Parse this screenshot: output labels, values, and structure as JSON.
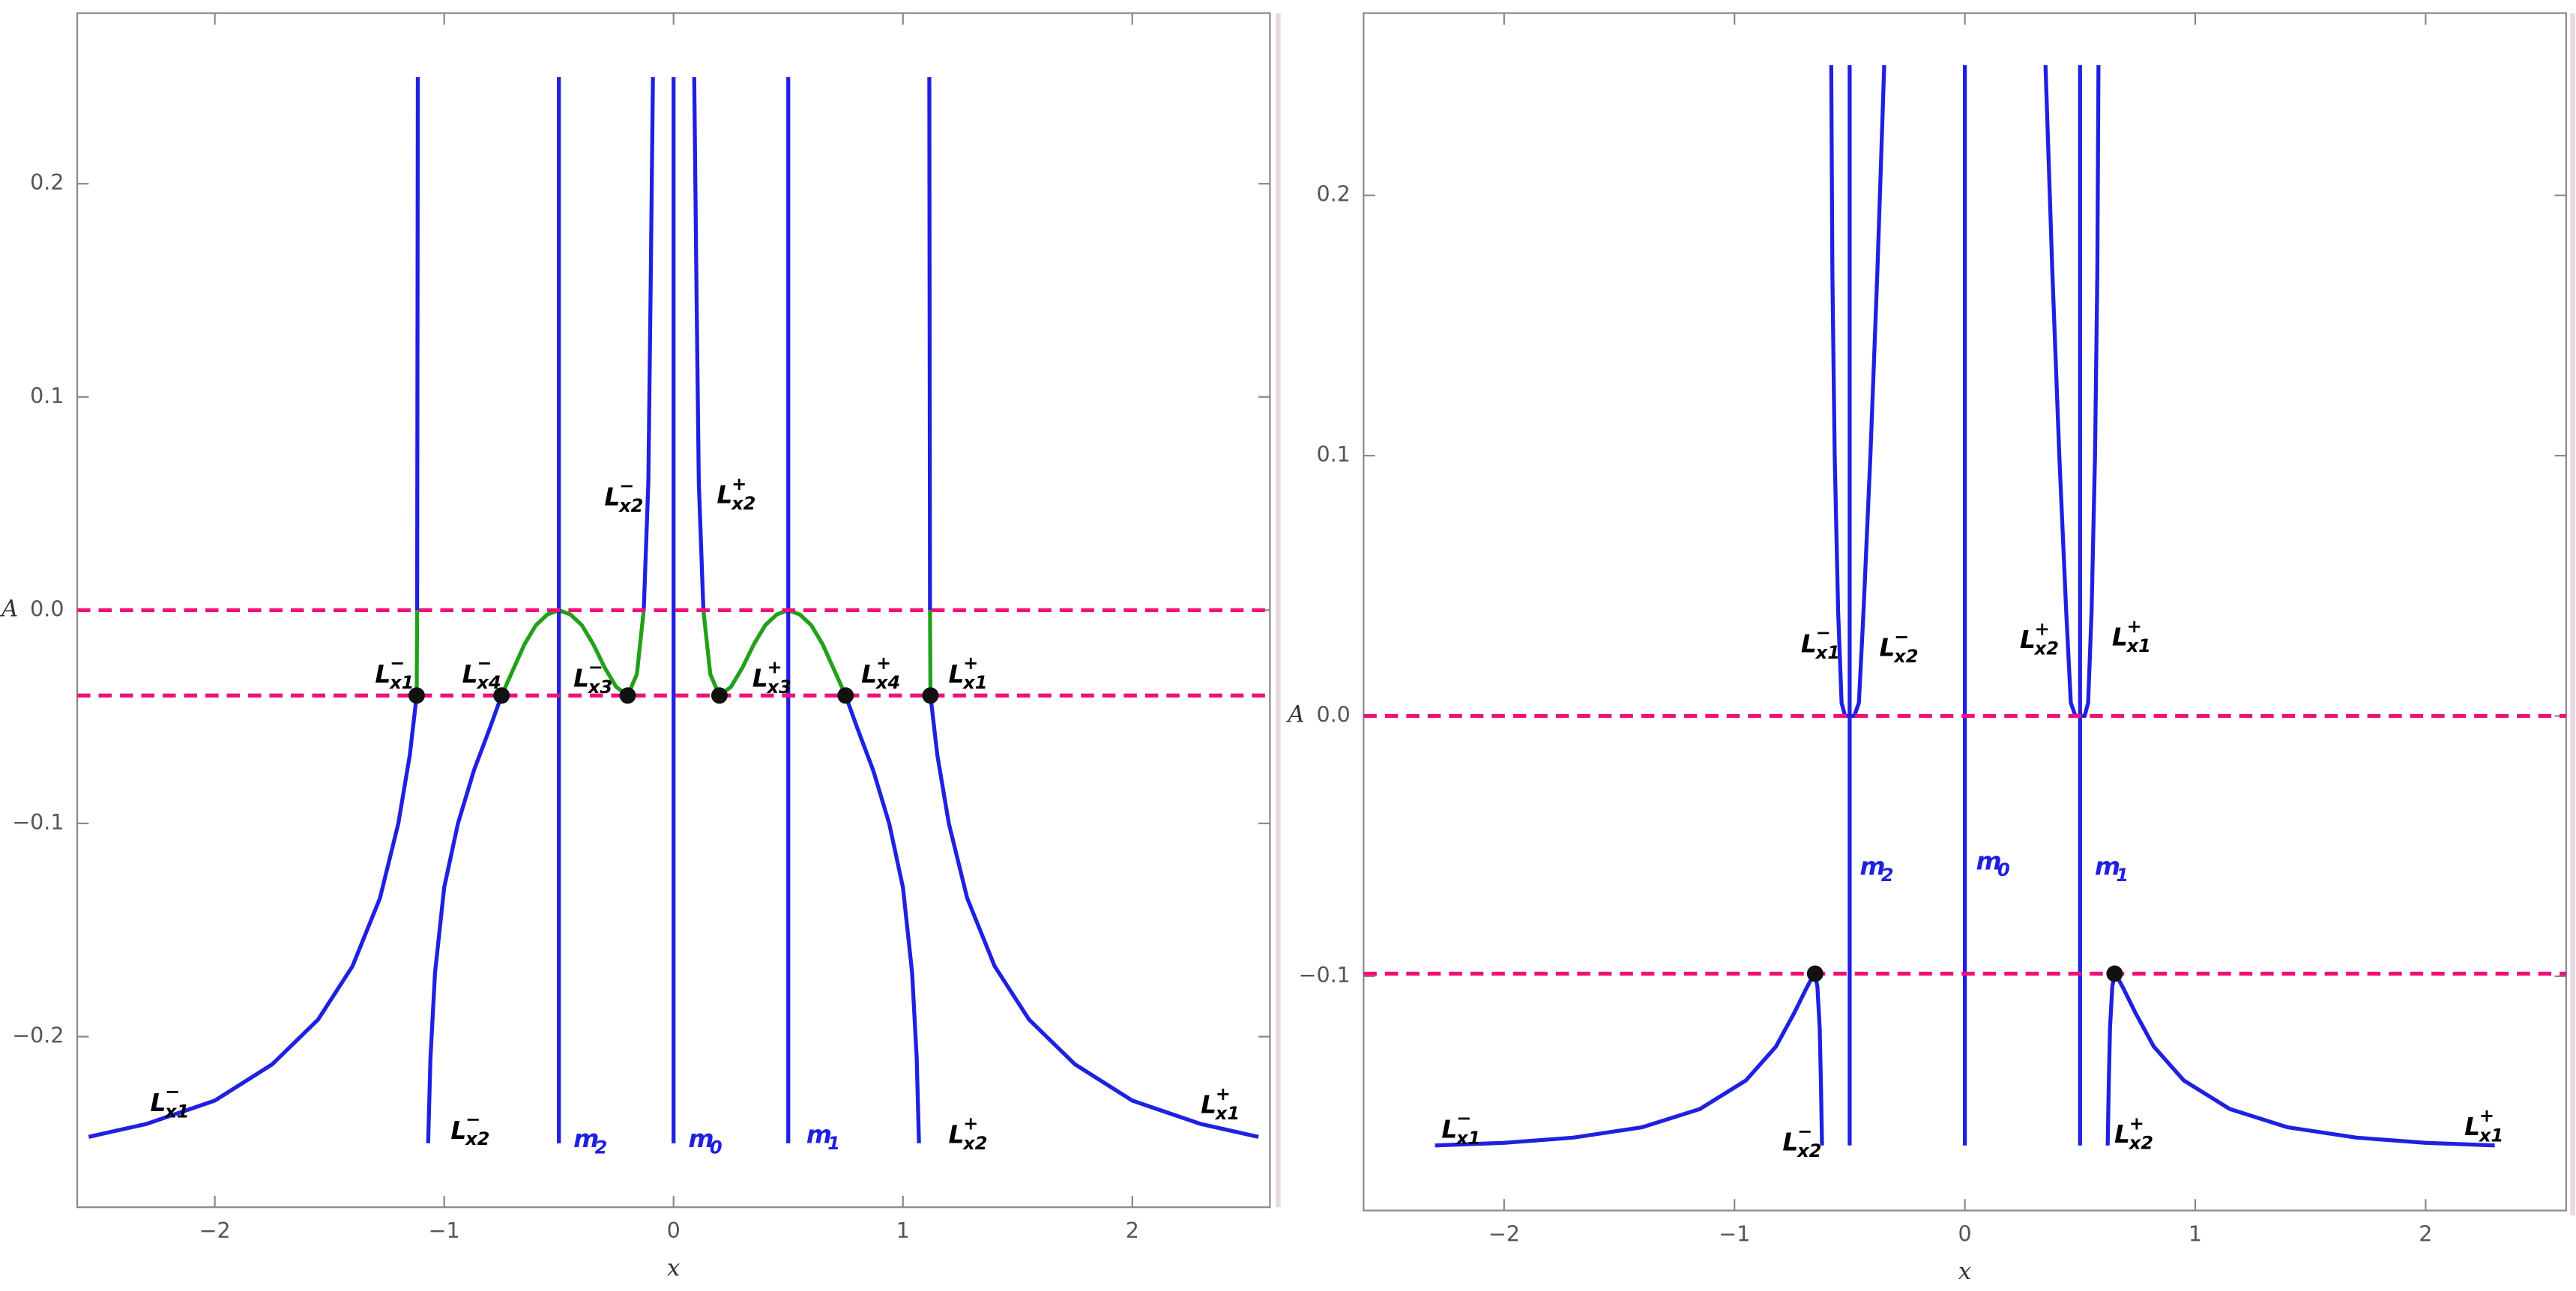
{
  "chart_data": [
    {
      "type": "line",
      "xlabel": "x",
      "ylabel": "A",
      "xlim": [
        -2.6,
        2.6
      ],
      "ylim": [
        -0.28,
        0.28
      ],
      "xticks": [
        {
          "value": -2,
          "label": "−2"
        },
        {
          "value": -1,
          "label": "−1"
        },
        0,
        1,
        2
      ],
      "yticks": [
        {
          "value": -0.2,
          "label": "−0.2"
        },
        {
          "value": -0.1,
          "label": "−0.1"
        },
        {
          "value": 0,
          "label": "0.0"
        },
        0.1,
        0.2
      ],
      "grid": false,
      "hlines": {
        "values": [
          0,
          -0.04
        ],
        "color": "#ee1177",
        "dashed": true
      },
      "series": [
        {
          "color": "#2020e0",
          "x": [
            -2.55,
            -2.3,
            -2.0,
            -1.75,
            -1.55,
            -1.4,
            -1.28,
            -1.2,
            -1.15,
            -1.12
          ],
          "values": [
            -0.247,
            -0.241,
            -0.23,
            -0.213,
            -0.192,
            -0.167,
            -0.135,
            -0.1,
            -0.068,
            -0.04
          ]
        },
        {
          "color": "#22a01a",
          "x": [
            -1.12,
            -1.118
          ],
          "values": [
            -0.04,
            0
          ]
        },
        {
          "color": "#2020e0",
          "x": [
            -1.118,
            -1.115
          ],
          "values": [
            0,
            0.25
          ]
        },
        {
          "color": "#2020e0",
          "x": [
            -1.07,
            -1.06,
            -1.04,
            -1.0,
            -0.94,
            -0.87,
            -0.8,
            -0.75
          ],
          "values": [
            -0.25,
            -0.21,
            -0.17,
            -0.13,
            -0.1,
            -0.075,
            -0.055,
            -0.04
          ]
        },
        {
          "color": "#22a01a",
          "x": [
            -0.75,
            -0.7,
            -0.65,
            -0.6,
            -0.55,
            -0.5,
            -0.45,
            -0.4,
            -0.35,
            -0.3,
            -0.25,
            -0.2,
            -0.16,
            -0.13
          ],
          "values": [
            -0.04,
            -0.028,
            -0.016,
            -0.007,
            -0.002,
            0,
            -0.002,
            -0.007,
            -0.016,
            -0.027,
            -0.036,
            -0.04,
            -0.03,
            0
          ]
        },
        {
          "color": "#2020e0",
          "x": [
            -0.13,
            -0.11,
            -0.1,
            -0.09
          ],
          "values": [
            0,
            0.06,
            0.15,
            0.25
          ]
        },
        {
          "color": "#2020e0",
          "x": [
            0.09,
            0.1,
            0.11,
            0.13
          ],
          "values": [
            0.25,
            0.15,
            0.06,
            0
          ]
        },
        {
          "color": "#22a01a",
          "x": [
            0.13,
            0.16,
            0.2,
            0.25,
            0.3,
            0.35,
            0.4,
            0.45,
            0.5,
            0.55,
            0.6,
            0.65,
            0.7,
            0.75
          ],
          "values": [
            0,
            -0.03,
            -0.04,
            -0.036,
            -0.027,
            -0.016,
            -0.007,
            -0.002,
            0,
            -0.002,
            -0.007,
            -0.016,
            -0.028,
            -0.04
          ]
        },
        {
          "color": "#2020e0",
          "x": [
            0.75,
            0.8,
            0.87,
            0.94,
            1.0,
            1.04,
            1.06,
            1.07
          ],
          "values": [
            -0.04,
            -0.055,
            -0.075,
            -0.1,
            -0.13,
            -0.17,
            -0.21,
            -0.25
          ]
        },
        {
          "color": "#2020e0",
          "x": [
            1.115,
            1.118
          ],
          "values": [
            0.25,
            0
          ]
        },
        {
          "color": "#22a01a",
          "x": [
            1.118,
            1.12
          ],
          "values": [
            0,
            -0.04
          ]
        },
        {
          "color": "#2020e0",
          "x": [
            1.12,
            1.15,
            1.2,
            1.28,
            1.4,
            1.55,
            1.75,
            2.0,
            2.3,
            2.55
          ],
          "values": [
            -0.04,
            -0.068,
            -0.1,
            -0.135,
            -0.167,
            -0.192,
            -0.213,
            -0.23,
            -0.241,
            -0.247
          ]
        },
        {
          "color": "#2020e0",
          "x": [
            -0.5,
            -0.5
          ],
          "values": [
            -0.25,
            0.25
          ]
        },
        {
          "color": "#2020e0",
          "x": [
            0,
            0
          ],
          "values": [
            -0.25,
            0.25
          ]
        },
        {
          "color": "#2020e0",
          "x": [
            0.5,
            0.5
          ],
          "values": [
            -0.25,
            0.25
          ]
        }
      ],
      "points": {
        "color": "#111111",
        "x": [
          -1.12,
          -0.75,
          -0.2,
          0.2,
          0.75,
          1.12
        ],
        "values": [
          -0.04,
          -0.04,
          -0.04,
          -0.04,
          -0.04,
          -0.04
        ]
      },
      "annotations": [
        {
          "base": "L",
          "sub": "x1",
          "sup": "−",
          "x": -2.21,
          "y": -0.23
        },
        {
          "base": "L",
          "sub": "x2",
          "sup": "−",
          "x": -0.9,
          "y": -0.243
        },
        {
          "base": "m",
          "sub": "2",
          "x": -0.365,
          "y": -0.247,
          "color": "#2020e0"
        },
        {
          "base": "m",
          "sub": "0",
          "x": 0.136,
          "y": -0.247,
          "color": "#2020e0"
        },
        {
          "base": "m",
          "sub": "1",
          "x": 0.65,
          "y": -0.245,
          "color": "#2020e0"
        },
        {
          "base": "L",
          "sub": "x2",
          "sup": "+",
          "x": 1.27,
          "y": -0.245
        },
        {
          "base": "L",
          "sub": "x1",
          "sup": "+",
          "x": 2.37,
          "y": -0.231
        },
        {
          "base": "L",
          "sub": "x2",
          "sup": "−",
          "x": -0.23,
          "y": 0.054
        },
        {
          "base": "L",
          "sub": "x2",
          "sup": "+",
          "x": 0.26,
          "y": 0.055
        },
        {
          "base": "L",
          "sub": "x1",
          "sup": "−",
          "x": -1.23,
          "y": -0.029
        },
        {
          "base": "L",
          "sub": "x4",
          "sup": "−",
          "x": -0.85,
          "y": -0.029
        },
        {
          "base": "L",
          "sub": "x3",
          "sup": "−",
          "x": -0.365,
          "y": -0.031
        },
        {
          "base": "L",
          "sub": "x3",
          "sup": "+",
          "x": 0.415,
          "y": -0.031
        },
        {
          "base": "L",
          "sub": "x4",
          "sup": "+",
          "x": 0.89,
          "y": -0.029
        },
        {
          "base": "L",
          "sub": "x1",
          "sup": "+",
          "x": 1.27,
          "y": -0.029
        }
      ]
    },
    {
      "type": "line",
      "xlabel": "x",
      "ylabel": "A",
      "xlim": [
        -2.61,
        2.61
      ],
      "ylim": [
        -0.19,
        0.27
      ],
      "xticks": [
        {
          "value": -2,
          "label": "−2"
        },
        {
          "value": -1,
          "label": "−1"
        },
        0,
        1,
        2
      ],
      "yticks": [
        {
          "value": -0.1,
          "label": "−0.1"
        },
        {
          "value": 0,
          "label": "0.0"
        },
        0.1,
        0.2
      ],
      "grid": false,
      "hlines": {
        "values": [
          0,
          -0.099
        ],
        "color": "#ee1177",
        "dashed": true
      },
      "series": [
        {
          "color": "#2020e0",
          "x": [
            -2.3,
            -2.0,
            -1.7,
            -1.4,
            -1.15,
            -0.95,
            -0.82,
            -0.74,
            -0.69,
            -0.66,
            -0.65,
            -0.64,
            -0.63,
            -0.625,
            -0.62
          ],
          "values": [
            -0.165,
            -0.164,
            -0.162,
            -0.158,
            -0.151,
            -0.14,
            -0.127,
            -0.114,
            -0.105,
            -0.1,
            -0.099,
            -0.104,
            -0.12,
            -0.14,
            -0.165
          ]
        },
        {
          "color": "#2020e0",
          "x": [
            -0.58,
            -0.575,
            -0.565,
            -0.55,
            -0.535,
            -0.52,
            -0.5,
            -0.48,
            -0.46,
            -0.44,
            -0.41,
            -0.38,
            -0.35
          ],
          "values": [
            0.25,
            0.17,
            0.1,
            0.04,
            0.005,
            0,
            0,
            0,
            0.005,
            0.04,
            0.1,
            0.17,
            0.25
          ]
        },
        {
          "color": "#2020e0",
          "x": [
            0.35,
            0.38,
            0.41,
            0.44,
            0.46,
            0.48,
            0.5,
            0.52,
            0.535,
            0.55,
            0.565,
            0.575,
            0.58
          ],
          "values": [
            0.25,
            0.17,
            0.1,
            0.04,
            0.005,
            0,
            0,
            0,
            0.005,
            0.04,
            0.1,
            0.17,
            0.25
          ]
        },
        {
          "color": "#2020e0",
          "x": [
            0.62,
            0.625,
            0.63,
            0.64,
            0.65,
            0.66,
            0.69,
            0.74,
            0.82,
            0.95,
            1.15,
            1.4,
            1.7,
            2.0,
            2.3
          ],
          "values": [
            -0.165,
            -0.14,
            -0.12,
            -0.104,
            -0.099,
            -0.1,
            -0.105,
            -0.114,
            -0.127,
            -0.14,
            -0.151,
            -0.158,
            -0.162,
            -0.164,
            -0.165
          ]
        },
        {
          "color": "#2020e0",
          "x": [
            -0.5,
            -0.5
          ],
          "values": [
            -0.165,
            0.25
          ]
        },
        {
          "color": "#2020e0",
          "x": [
            0,
            0
          ],
          "values": [
            -0.165,
            0.25
          ]
        },
        {
          "color": "#2020e0",
          "x": [
            0.5,
            0.5
          ],
          "values": [
            -0.165,
            0.25
          ]
        }
      ],
      "points": {
        "color": "#111111",
        "x": [
          -0.65,
          0.65
        ],
        "values": [
          -0.099,
          -0.099
        ]
      },
      "annotations": [
        {
          "base": "L",
          "sub": "x1",
          "sup": "−",
          "x": -0.64,
          "y": 0.0285
        },
        {
          "base": "L",
          "sub": "x2",
          "sup": "−",
          "x": -0.3,
          "y": 0.027
        },
        {
          "base": "L",
          "sub": "x2",
          "sup": "+",
          "x": 0.31,
          "y": 0.03
        },
        {
          "base": "L",
          "sub": "x1",
          "sup": "+",
          "x": 0.71,
          "y": 0.031
        },
        {
          "base": "m",
          "sub": "2",
          "x": -0.385,
          "y": -0.057,
          "color": "#2020e0"
        },
        {
          "base": "m",
          "sub": "0",
          "x": 0.12,
          "y": -0.055,
          "color": "#2020e0"
        },
        {
          "base": "m",
          "sub": "1",
          "x": 0.635,
          "y": -0.057,
          "color": "#2020e0"
        },
        {
          "base": "L",
          "sub": "x1",
          "sup": "−",
          "x": -2.2,
          "y": -0.158
        },
        {
          "base": "L",
          "sub": "x2",
          "sup": "−",
          "x": -0.72,
          "y": -0.163
        },
        {
          "base": "L",
          "sub": "x2",
          "sup": "+",
          "x": 0.72,
          "y": -0.16
        },
        {
          "base": "L",
          "sub": "x1",
          "sup": "+",
          "x": 2.24,
          "y": -0.157
        }
      ]
    }
  ]
}
